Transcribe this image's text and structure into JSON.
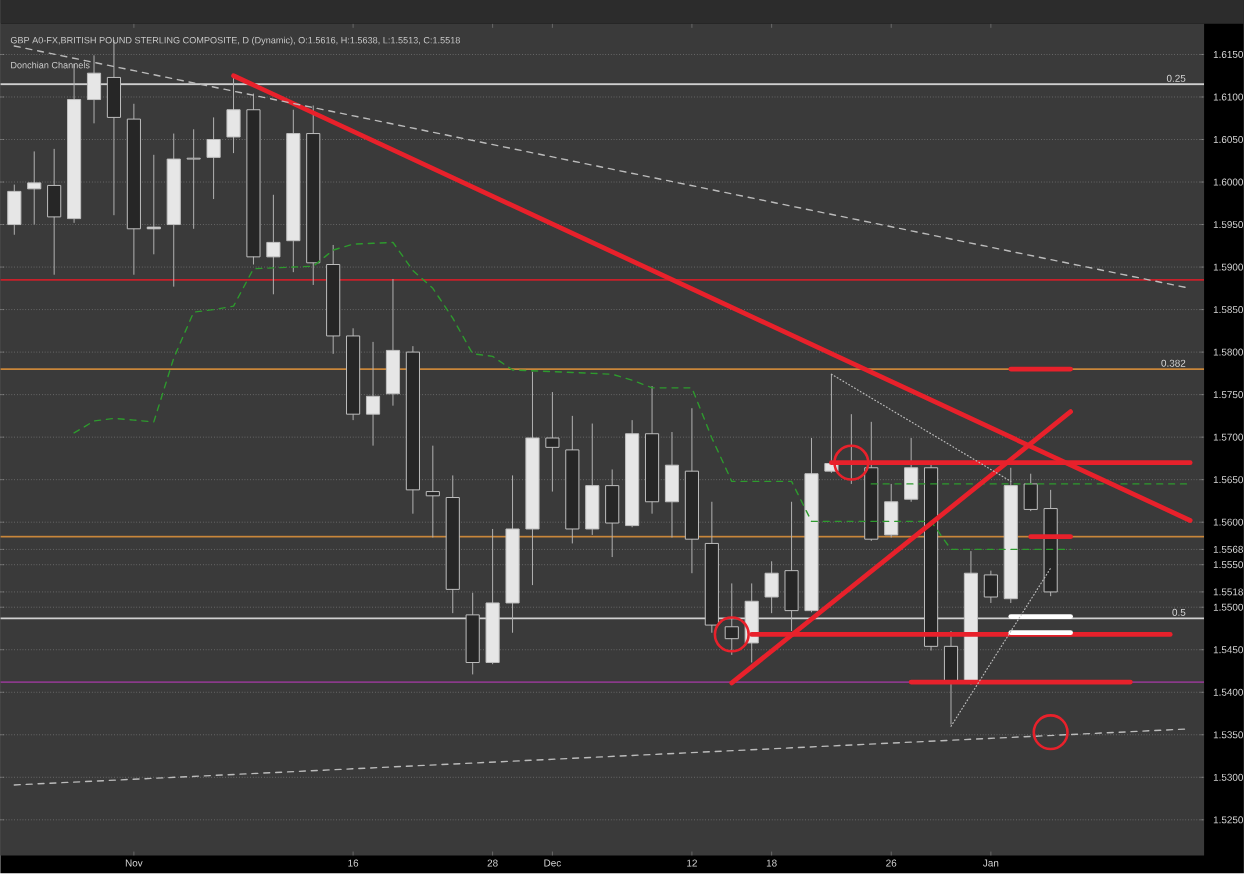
{
  "chart_data": {
    "type": "candlestick",
    "title": "GBP A0-FX,BRITISH POUND STERLING COMPOSITE, D (Dynamic), O:1.5616, H:1.5638, L:1.5513, C:1.5518",
    "annotations": [
      "Donchian Channels",
      {
        "text": "0.25",
        "y": 1.6115
      },
      {
        "text": "0.382",
        "y": 1.578
      },
      {
        "text": "0.5",
        "y": 1.5487
      }
    ],
    "categories": [
      null,
      null,
      null,
      null,
      null,
      null,
      "Nov",
      null,
      null,
      null,
      null,
      null,
      null,
      null,
      null,
      null,
      null,
      "16",
      null,
      null,
      null,
      null,
      null,
      null,
      "28",
      null,
      null,
      "Dec",
      null,
      null,
      null,
      null,
      null,
      null,
      "12",
      null,
      null,
      null,
      "18",
      null,
      null,
      null,
      null,
      null,
      "26",
      null,
      null,
      null,
      null,
      "Jan",
      null,
      null,
      null,
      null,
      null,
      null,
      null,
      null,
      null,
      null
    ],
    "colors": [
      "#e6e6e6",
      "#e6e6e6",
      "#262626",
      "#e6e6e6",
      "#e6e6e6",
      "#262626",
      "#262626",
      "#e6e6e6",
      "#e6e6e6",
      "#262626",
      "#e6e6e6",
      "#e6e6e6",
      "#262626",
      "#e6e6e6",
      "#e6e6e6",
      "#262626",
      "#262626",
      "#262626",
      "#e6e6e6",
      "#e6e6e6",
      "#262626",
      "#262626",
      "#262626",
      "#262626",
      "#e6e6e6",
      "#e6e6e6",
      "#e6e6e6",
      "#262626",
      "#262626",
      "#e6e6e6",
      "#262626",
      "#e6e6e6",
      "#262626",
      "#e6e6e6",
      "#262626",
      "#262626",
      "#262626",
      "#e6e6e6",
      "#e6e6e6",
      "#262626",
      "#e6e6e6",
      "#e6e6e6",
      "#262626",
      "#262626",
      "#e6e6e6",
      "#e6e6e6",
      "#262626",
      "#262626",
      "#e6e6e6",
      "#262626",
      "#e6e6e6",
      "#262626",
      "#262626",
      null,
      null,
      null,
      null,
      null,
      null,
      null
    ],
    "ohlc": [
      [
        1.595,
        1.5997,
        1.5938,
        1.5989
      ],
      [
        1.5992,
        1.6036,
        1.595,
        1.5999
      ],
      [
        1.5996,
        1.6039,
        1.5891,
        1.5959
      ],
      [
        1.5957,
        1.6139,
        1.5952,
        1.6097
      ],
      [
        1.6097,
        1.6149,
        1.6069,
        1.6128
      ],
      [
        1.6123,
        1.6167,
        1.5961,
        1.6076
      ],
      [
        1.6074,
        1.6092,
        1.5891,
        1.5945
      ],
      [
        1.5945,
        1.6032,
        1.5915,
        1.5947
      ],
      [
        1.595,
        1.6057,
        1.5877,
        1.6027
      ],
      [
        1.6028,
        1.6062,
        1.5945,
        1.6027
      ],
      [
        1.6029,
        1.6076,
        1.598,
        1.605
      ],
      [
        1.6053,
        1.6125,
        1.6034,
        1.6085
      ],
      [
        1.6085,
        1.6104,
        1.5903,
        1.5912
      ],
      [
        1.5912,
        1.5985,
        1.5868,
        1.5929
      ],
      [
        1.5931,
        1.6085,
        1.5894,
        1.6057
      ],
      [
        1.6057,
        1.609,
        1.5879,
        1.5905
      ],
      [
        1.5903,
        1.5926,
        1.5798,
        1.5819
      ],
      [
        1.5819,
        1.5828,
        1.572,
        1.5727
      ],
      [
        1.5727,
        1.5812,
        1.569,
        1.5748
      ],
      [
        1.5751,
        1.5886,
        1.5737,
        1.5802
      ],
      [
        1.58,
        1.5807,
        1.561,
        1.5638
      ],
      [
        1.5636,
        1.569,
        1.5582,
        1.5631
      ],
      [
        1.5629,
        1.5655,
        1.5493,
        1.5521
      ],
      [
        1.5491,
        1.5517,
        1.5421,
        1.5435
      ],
      [
        1.5435,
        1.5592,
        1.5433,
        1.5505
      ],
      [
        1.5505,
        1.5655,
        1.547,
        1.5592
      ],
      [
        1.5592,
        1.5777,
        1.5526,
        1.5699
      ],
      [
        1.5699,
        1.5753,
        1.5636,
        1.5688
      ],
      [
        1.5685,
        1.5725,
        1.5575,
        1.5592
      ],
      [
        1.5592,
        1.5716,
        1.5585,
        1.5643
      ],
      [
        1.5643,
        1.5662,
        1.5559,
        1.5599
      ],
      [
        1.5596,
        1.572,
        1.5594,
        1.5704
      ],
      [
        1.5704,
        1.576,
        1.561,
        1.5624
      ],
      [
        1.5624,
        1.5706,
        1.5582,
        1.5667
      ],
      [
        1.566,
        1.5734,
        1.554,
        1.558
      ],
      [
        1.5575,
        1.5624,
        1.547,
        1.5479
      ],
      [
        1.5477,
        1.5528,
        1.5444,
        1.5463
      ],
      [
        1.5458,
        1.5528,
        1.5435,
        1.5507
      ],
      [
        1.5512,
        1.5554,
        1.5493,
        1.554
      ],
      [
        1.5543,
        1.5624,
        1.5472,
        1.5496
      ],
      [
        1.5496,
        1.5699,
        1.5494,
        1.5657
      ],
      [
        1.566,
        1.5774,
        1.5658,
        1.5669
      ],
      [
        1.5671,
        1.5727,
        1.5645,
        1.5668
      ],
      [
        1.5664,
        1.5718,
        1.5578,
        1.558
      ],
      [
        1.5585,
        1.5645,
        1.5582,
        1.5624
      ],
      [
        1.5627,
        1.5699,
        1.5624,
        1.5664
      ],
      [
        1.5664,
        1.5669,
        1.5449,
        1.5454
      ],
      [
        1.5454,
        1.5472,
        1.5362,
        1.5411
      ],
      [
        1.5411,
        1.5566,
        1.5409,
        1.554
      ],
      [
        1.5538,
        1.5543,
        1.5505,
        1.5512
      ],
      [
        1.551,
        1.5664,
        1.5505,
        1.5643
      ],
      [
        1.5645,
        1.5657,
        1.5613,
        1.5615
      ],
      [
        1.5616,
        1.5638,
        1.5513,
        1.5518
      ],
      null,
      null,
      null,
      null,
      null,
      null,
      null
    ],
    "series": [
      {
        "type": "line",
        "color": "#2e9a2e",
        "line_style": "dashed",
        "values": [
          null,
          null,
          null,
          1.5705,
          1.5719,
          1.5722,
          1.572,
          1.5718,
          1.5793,
          1.5847,
          1.585,
          1.5854,
          1.5898,
          1.5899,
          1.59,
          1.5901,
          1.592,
          1.5927,
          1.5928,
          1.5929,
          1.5896,
          1.5875,
          1.584,
          1.5798,
          1.5795,
          1.5779,
          1.5778,
          1.5777,
          1.5776,
          1.5775,
          1.5774,
          1.5767,
          1.5758,
          1.5758,
          1.5758,
          1.5699,
          1.5648,
          1.5648,
          1.5648,
          1.5648,
          1.5601,
          1.5601,
          1.5601,
          1.5601,
          1.5601,
          1.5601,
          1.5601,
          1.5568,
          1.5568,
          1.5568,
          1.5568,
          1.5568,
          1.5568,
          1.5568,
          null,
          null,
          null,
          null,
          null,
          null
        ]
      },
      {
        "type": "line",
        "color": "#2e9a2e",
        "line_style": "dashed",
        "values": [
          null,
          null,
          null,
          null,
          null,
          null,
          null,
          null,
          null,
          null,
          null,
          null,
          null,
          null,
          null,
          null,
          null,
          null,
          null,
          null,
          null,
          null,
          null,
          null,
          null,
          null,
          null,
          null,
          null,
          null,
          null,
          null,
          null,
          null,
          null,
          null,
          null,
          null,
          null,
          null,
          null,
          null,
          null,
          1.5645,
          1.5645,
          1.5645,
          1.5645,
          1.5645,
          1.5645,
          1.5645,
          1.5645,
          1.5645,
          1.5645,
          1.5645,
          1.5645,
          1.5645,
          1.5645,
          1.5645,
          1.5645,
          1.5645
        ]
      },
      {
        "type": "line",
        "color": "#e8212b",
        "line_style": "solid",
        "values": [
          null,
          null,
          null,
          null,
          null,
          null,
          null,
          null,
          null,
          null,
          null,
          1.6125,
          null,
          null,
          null,
          null,
          null,
          null,
          null,
          null,
          null,
          null,
          null,
          null,
          null,
          null,
          null,
          null,
          null,
          null,
          null,
          null,
          null,
          null,
          null,
          null,
          null,
          null,
          null,
          null,
          null,
          null,
          null,
          null,
          null,
          null,
          null,
          null,
          null,
          null,
          null,
          null,
          null,
          null,
          null,
          null,
          null,
          null,
          null,
          1.5602
        ]
      },
      {
        "type": "line",
        "color": "#e8212b",
        "line_style": "solid",
        "values": [
          null,
          null,
          null,
          null,
          null,
          null,
          null,
          null,
          null,
          null,
          null,
          null,
          null,
          null,
          null,
          null,
          null,
          null,
          null,
          null,
          null,
          null,
          null,
          null,
          null,
          null,
          null,
          null,
          null,
          null,
          null,
          null,
          null,
          null,
          null,
          null,
          1.5411,
          null,
          null,
          null,
          null,
          null,
          null,
          null,
          null,
          null,
          null,
          null,
          null,
          null,
          null,
          null,
          null,
          1.573,
          null,
          null,
          null,
          null,
          null,
          null
        ]
      },
      {
        "type": "line",
        "color": "#e8212b",
        "line_style": "solid",
        "values": [
          null,
          null,
          null,
          null,
          null,
          null,
          null,
          null,
          null,
          null,
          null,
          null,
          null,
          null,
          null,
          null,
          null,
          null,
          null,
          null,
          null,
          null,
          null,
          null,
          null,
          null,
          null,
          null,
          null,
          null,
          null,
          null,
          null,
          null,
          null,
          null,
          null,
          null,
          null,
          null,
          null,
          1.567,
          null,
          null,
          null,
          null,
          null,
          null,
          null,
          null,
          null,
          null,
          null,
          null,
          null,
          null,
          null,
          null,
          null,
          1.567
        ]
      },
      {
        "type": "line",
        "color": "#e8212b",
        "line_style": "solid",
        "values": [
          null,
          null,
          null,
          null,
          null,
          null,
          null,
          null,
          null,
          null,
          null,
          null,
          null,
          null,
          null,
          null,
          null,
          null,
          null,
          null,
          null,
          null,
          null,
          null,
          null,
          null,
          null,
          null,
          null,
          null,
          null,
          null,
          null,
          null,
          null,
          null,
          null,
          1.5468,
          null,
          null,
          null,
          null,
          null,
          null,
          null,
          null,
          null,
          null,
          null,
          null,
          null,
          null,
          null,
          null,
          null,
          null,
          null,
          null,
          1.5468,
          null
        ]
      },
      {
        "type": "line",
        "color": "#e8212b",
        "line_style": "solid",
        "values": [
          null,
          null,
          null,
          null,
          null,
          null,
          null,
          null,
          null,
          null,
          null,
          null,
          null,
          null,
          null,
          null,
          null,
          null,
          null,
          null,
          null,
          null,
          null,
          null,
          null,
          null,
          null,
          null,
          null,
          null,
          null,
          null,
          null,
          null,
          null,
          null,
          null,
          null,
          null,
          null,
          null,
          null,
          null,
          null,
          null,
          1.5412,
          null,
          null,
          null,
          null,
          null,
          null,
          null,
          null,
          null,
          null,
          1.5412,
          null,
          null,
          null
        ]
      },
      {
        "type": "line",
        "color": "#e8212b",
        "line_style": "solid",
        "values": [
          null,
          null,
          null,
          null,
          null,
          null,
          null,
          null,
          null,
          null,
          null,
          null,
          null,
          null,
          null,
          null,
          null,
          null,
          null,
          null,
          null,
          null,
          null,
          null,
          null,
          null,
          null,
          null,
          null,
          null,
          null,
          null,
          null,
          null,
          null,
          null,
          null,
          null,
          null,
          null,
          null,
          null,
          null,
          null,
          null,
          null,
          null,
          null,
          null,
          null,
          1.578,
          null,
          null,
          1.578,
          null,
          null,
          null,
          null,
          null,
          null
        ]
      },
      {
        "type": "line",
        "color": "#e8212b",
        "line_style": "solid",
        "values": [
          null,
          null,
          null,
          null,
          null,
          null,
          null,
          null,
          null,
          null,
          null,
          null,
          null,
          null,
          null,
          null,
          null,
          null,
          null,
          null,
          null,
          null,
          null,
          null,
          null,
          null,
          null,
          null,
          null,
          null,
          null,
          null,
          null,
          null,
          null,
          null,
          null,
          null,
          null,
          null,
          null,
          null,
          null,
          null,
          null,
          null,
          null,
          null,
          null,
          null,
          null,
          1.5583,
          null,
          1.5583,
          null,
          null,
          null,
          null,
          null,
          null
        ]
      },
      {
        "type": "line",
        "color": "#ffffff",
        "line_style": "solid",
        "values": [
          null,
          null,
          null,
          null,
          null,
          null,
          null,
          null,
          null,
          null,
          null,
          null,
          null,
          null,
          null,
          null,
          null,
          null,
          null,
          null,
          null,
          null,
          null,
          null,
          null,
          null,
          null,
          null,
          null,
          null,
          null,
          null,
          null,
          null,
          null,
          null,
          null,
          null,
          null,
          null,
          null,
          null,
          null,
          null,
          null,
          null,
          null,
          null,
          null,
          null,
          1.5489,
          null,
          null,
          1.5489,
          null,
          null,
          null,
          null,
          null,
          null
        ]
      },
      {
        "type": "line",
        "color": "#ffffff",
        "line_style": "solid",
        "values": [
          null,
          null,
          null,
          null,
          null,
          null,
          null,
          null,
          null,
          null,
          null,
          null,
          null,
          null,
          null,
          null,
          null,
          null,
          null,
          null,
          null,
          null,
          null,
          null,
          null,
          null,
          null,
          null,
          null,
          null,
          null,
          null,
          null,
          null,
          null,
          null,
          null,
          null,
          null,
          null,
          null,
          null,
          null,
          null,
          null,
          null,
          null,
          null,
          null,
          null,
          1.547,
          null,
          null,
          1.547,
          null,
          null,
          null,
          null,
          null,
          null
        ]
      },
      {
        "type": "line",
        "color": "#bbbbbb",
        "line_style": "dashed",
        "values": [
          1.616,
          null,
          null,
          null,
          null,
          null,
          null,
          null,
          null,
          null,
          null,
          null,
          null,
          null,
          null,
          null,
          null,
          null,
          null,
          null,
          null,
          null,
          null,
          null,
          null,
          null,
          null,
          null,
          null,
          null,
          null,
          null,
          null,
          null,
          null,
          null,
          null,
          null,
          null,
          null,
          null,
          null,
          null,
          null,
          null,
          null,
          null,
          null,
          null,
          null,
          null,
          null,
          null,
          null,
          null,
          null,
          null,
          null,
          null,
          1.5875
        ]
      },
      {
        "type": "line",
        "color": "#bbbbbb",
        "line_style": "dashed",
        "values": [
          1.5291,
          null,
          null,
          null,
          null,
          null,
          null,
          null,
          null,
          null,
          null,
          null,
          null,
          null,
          null,
          null,
          null,
          null,
          null,
          null,
          null,
          null,
          null,
          null,
          null,
          null,
          null,
          null,
          null,
          null,
          null,
          null,
          null,
          null,
          null,
          null,
          null,
          null,
          null,
          null,
          null,
          null,
          null,
          null,
          null,
          null,
          null,
          null,
          null,
          null,
          null,
          null,
          null,
          null,
          null,
          null,
          null,
          null,
          null,
          1.5357
        ]
      },
      {
        "type": "line",
        "color": "#bbbbbb",
        "line_style": "dotted",
        "values": [
          null,
          null,
          null,
          null,
          null,
          null,
          null,
          null,
          null,
          null,
          null,
          null,
          null,
          null,
          null,
          null,
          null,
          null,
          null,
          null,
          null,
          null,
          null,
          null,
          null,
          null,
          null,
          null,
          null,
          null,
          null,
          null,
          null,
          null,
          null,
          null,
          null,
          null,
          null,
          null,
          null,
          1.5774,
          null,
          null,
          null,
          null,
          null,
          null,
          null,
          null,
          1.5648,
          null,
          null,
          null,
          null,
          null,
          null,
          null,
          null,
          null
        ]
      },
      {
        "type": "line",
        "color": "#bbbbbb",
        "line_style": "dotted",
        "values": [
          null,
          null,
          null,
          null,
          null,
          null,
          null,
          null,
          null,
          null,
          null,
          null,
          null,
          null,
          null,
          null,
          null,
          null,
          null,
          null,
          null,
          null,
          null,
          null,
          null,
          null,
          null,
          null,
          null,
          null,
          null,
          null,
          null,
          null,
          null,
          null,
          null,
          null,
          null,
          null,
          null,
          null,
          null,
          null,
          null,
          null,
          null,
          1.536,
          null,
          null,
          null,
          null,
          1.5546,
          null,
          null,
          null,
          null,
          null,
          null,
          null
        ]
      },
      {
        "type": "scatter",
        "color": "#e8212b",
        "marker": "circle",
        "values": [
          null,
          null,
          null,
          null,
          null,
          null,
          null,
          null,
          null,
          null,
          null,
          null,
          null,
          null,
          null,
          null,
          null,
          null,
          null,
          null,
          null,
          null,
          null,
          null,
          null,
          null,
          null,
          null,
          null,
          null,
          null,
          null,
          null,
          null,
          null,
          null,
          1.5468,
          null,
          null,
          null,
          null,
          null,
          1.567,
          null,
          null,
          null,
          null,
          null,
          null,
          null,
          null,
          null,
          1.5353,
          null,
          null,
          null,
          null,
          null,
          null,
          null
        ]
      }
    ],
    "ref_lines": [
      {
        "axis": "y",
        "value": 1.6115,
        "color": "#cfcfcf"
      },
      {
        "axis": "y",
        "value": 1.5885,
        "color": "#c8202a"
      },
      {
        "axis": "y",
        "value": 1.578,
        "color": "#c8863a"
      },
      {
        "axis": "y",
        "value": 1.5583,
        "color": "#c8863a"
      },
      {
        "axis": "y",
        "value": 1.5487,
        "color": "#cfcfcf"
      },
      {
        "axis": "y",
        "value": 1.5412,
        "color": "#8a3a8a"
      }
    ],
    "ylim": [
      1.5208,
      1.6186
    ],
    "yticks": [
      {
        "value": 1.525,
        "label": "1.5250"
      },
      {
        "value": 1.53,
        "label": "1.5300"
      },
      {
        "value": 1.535,
        "label": "1.5350"
      },
      {
        "value": 1.54,
        "label": "1.5400"
      },
      {
        "value": 1.545,
        "label": "1.5450"
      },
      {
        "value": 1.55,
        "label": "1.5500"
      },
      1.5518,
      {
        "value": 1.555,
        "label": "1.5550"
      },
      1.5568,
      {
        "value": 1.56,
        "label": "1.5600"
      },
      {
        "value": 1.565,
        "label": "1.5650"
      },
      {
        "value": 1.57,
        "label": "1.5700"
      },
      {
        "value": 1.575,
        "label": "1.5750"
      },
      {
        "value": 1.58,
        "label": "1.5800"
      },
      {
        "value": 1.585,
        "label": "1.5850"
      },
      {
        "value": 1.59,
        "label": "1.5900"
      },
      {
        "value": 1.595,
        "label": "1.5950"
      },
      {
        "value": 1.6,
        "label": "1.6000"
      },
      {
        "value": 1.605,
        "label": "1.6050"
      },
      {
        "value": 1.61,
        "label": "1.6100"
      },
      {
        "value": 1.615,
        "label": "1.6150"
      }
    ],
    "grid": "y"
  }
}
